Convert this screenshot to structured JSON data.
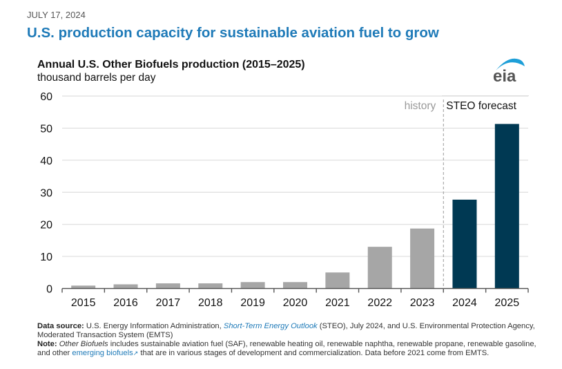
{
  "header": {
    "date": "JULY 17, 2024",
    "headline": "U.S. production capacity for sustainable aviation fuel to grow"
  },
  "logo": {
    "text": "eia",
    "icon": "eia-logo-icon"
  },
  "colors": {
    "headline": "#1e7ab8",
    "history_bar": "#a6a6a6",
    "forecast_bar": "#003953",
    "gridline": "#dddddd",
    "axis": "#555555",
    "history_label": "#999999"
  },
  "chart_data": {
    "type": "bar",
    "title": "Annual U.S. Other Biofuels production (2015–2025)",
    "ylabel": "thousand barrels per day",
    "xlabel": "",
    "categories": [
      "2015",
      "2016",
      "2017",
      "2018",
      "2019",
      "2020",
      "2021",
      "2022",
      "2023",
      "2024",
      "2025"
    ],
    "values": [
      0.9,
      1.3,
      1.6,
      1.6,
      2.0,
      2.0,
      5.0,
      13.0,
      18.7,
      27.7,
      51.3
    ],
    "segments": [
      "history",
      "history",
      "history",
      "history",
      "history",
      "history",
      "history",
      "history",
      "history",
      "forecast",
      "forecast"
    ],
    "ylim": [
      0,
      60
    ],
    "yticks": [
      0,
      10,
      20,
      30,
      40,
      50,
      60
    ],
    "grid": true,
    "annotations": {
      "history": "history",
      "forecast": "STEO forecast",
      "divider_between": [
        "2023",
        "2024"
      ]
    }
  },
  "footnote": {
    "source_label": "Data source:",
    "source_text_1": " U.S. Energy Information Administration, ",
    "source_link": "Short-Term Energy Outlook",
    "source_text_2": " (STEO), July 2024, and U.S. Environmental Protection Agency, Moderated Transaction System (EMTS)",
    "note_label": "Note:",
    "note_italic": "Other Biofuels",
    "note_text_1": " includes sustainable aviation fuel (SAF), renewable heating oil, renewable naphtha, renewable propane, renewable gasoline, and other ",
    "note_link": "emerging biofuels",
    "note_link_icon": "↗",
    "note_text_2": " that are in various stages of development and commercialization. Data before 2021 come from EMTS."
  }
}
